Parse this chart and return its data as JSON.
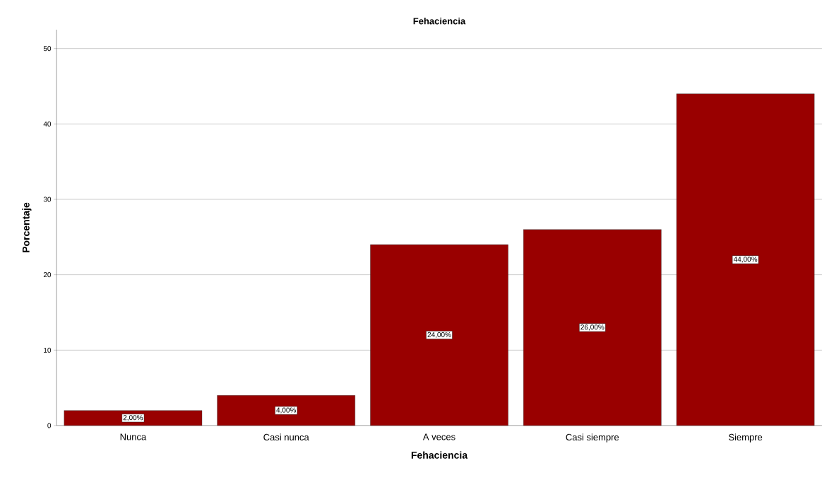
{
  "chart_data": {
    "type": "bar",
    "title": "Fehaciencia",
    "xlabel": "Fehaciencia",
    "ylabel": "Porcentaje",
    "categories": [
      "Nunca",
      "Casi nunca",
      "A veces",
      "Casi siempre",
      "Siempre"
    ],
    "values": [
      2,
      4,
      24,
      26,
      44
    ],
    "value_labels": [
      "2,00%",
      "4,00%",
      "24,00%",
      "26,00%",
      "44,00%"
    ],
    "color": "#990000",
    "ylim": [
      0,
      52.5
    ],
    "yticks": [
      0,
      10,
      20,
      30,
      40,
      50
    ],
    "grid": "y"
  }
}
